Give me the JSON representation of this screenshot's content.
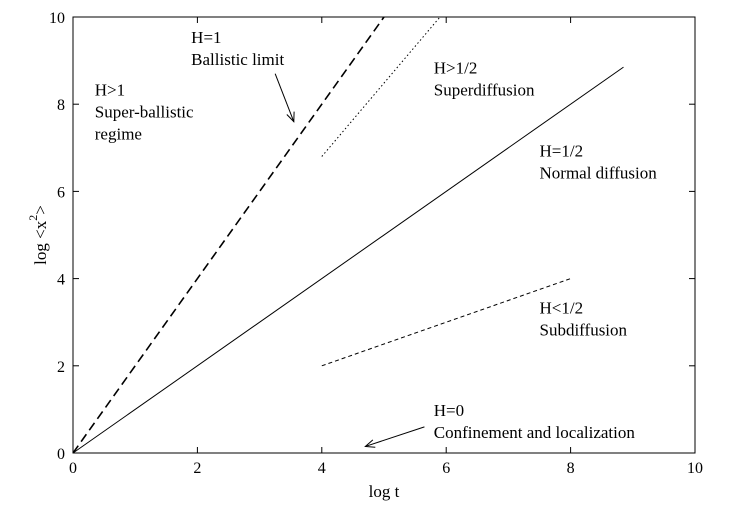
{
  "chart_data": {
    "type": "line",
    "xlabel": "log t",
    "ylabel": "log <x",
    "ylabel_superscript": "2",
    "ylabel_tail": ">",
    "xlim": [
      0,
      10
    ],
    "ylim": [
      0,
      10
    ],
    "x_ticks": [
      0,
      2,
      4,
      6,
      8,
      10
    ],
    "y_ticks": [
      0,
      2,
      4,
      6,
      8,
      10
    ],
    "grid": false,
    "series": [
      {
        "style": "dashed",
        "color": "#000000",
        "points": [
          [
            0,
            0
          ],
          [
            5,
            10
          ]
        ]
      },
      {
        "style": "dotted",
        "color": "#000000",
        "points": [
          [
            4,
            6.8
          ],
          [
            5.9,
            10
          ]
        ]
      },
      {
        "style": "solid",
        "color": "#000000",
        "points": [
          [
            0,
            0
          ],
          [
            8.85,
            8.85
          ]
        ]
      },
      {
        "style": "short-dashed",
        "color": "#000000",
        "points": [
          [
            4,
            2
          ],
          [
            8,
            4
          ]
        ]
      }
    ],
    "annotations": [
      {
        "lines": [
          "H=1",
          "Ballistic limit"
        ],
        "x": 1.9,
        "y": 9.4
      },
      {
        "lines": [
          "H>1",
          "Super-ballistic",
          "regime"
        ],
        "x": 0.35,
        "y": 8.2
      },
      {
        "lines": [
          "H>1/2",
          "Superdiffusion"
        ],
        "x": 5.8,
        "y": 8.7
      },
      {
        "lines": [
          "H=1/2",
          "Normal diffusion"
        ],
        "x": 7.5,
        "y": 6.8
      },
      {
        "lines": [
          "H<1/2",
          "Subdiffusion"
        ],
        "x": 7.5,
        "y": 3.2
      },
      {
        "lines": [
          "H=0",
          "Confinement and localization"
        ],
        "x": 5.8,
        "y": 0.85
      }
    ],
    "arrows": [
      {
        "from": [
          3.25,
          8.7
        ],
        "to": [
          3.55,
          7.6
        ]
      },
      {
        "from": [
          5.65,
          0.6
        ],
        "to": [
          4.7,
          0.15
        ]
      }
    ]
  }
}
